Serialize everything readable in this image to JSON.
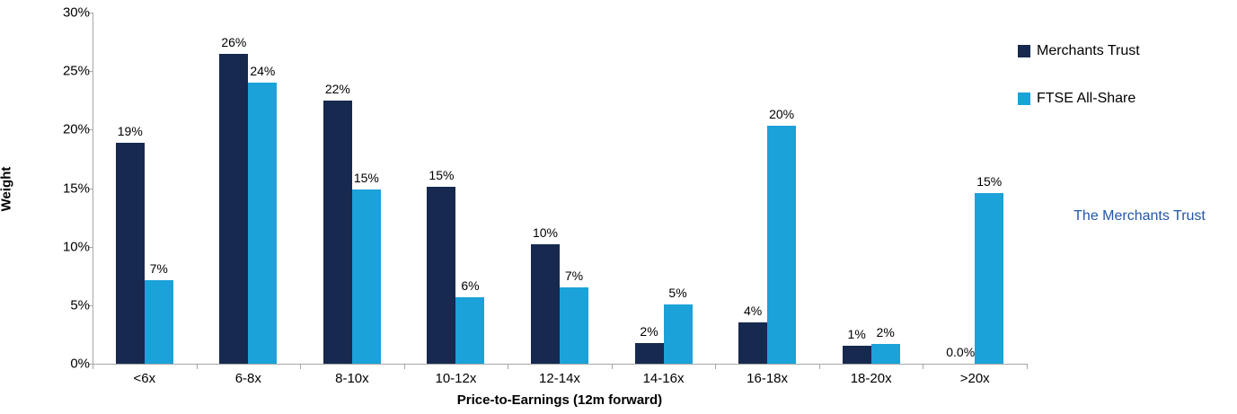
{
  "brand": {
    "text": "The Merchants Trust"
  },
  "colors": {
    "merchants": "#17294F",
    "ftse": "#1BA2D8",
    "axis": "#a6a6a6",
    "brand_blue": "#2457A8"
  },
  "legend": {
    "items": [
      {
        "label": "Merchants Trust",
        "color_key": "merchants"
      },
      {
        "label": "FTSE All-Share",
        "color_key": "ftse"
      }
    ]
  },
  "chart_data": {
    "type": "bar",
    "title": "",
    "xlabel": "Price-to-Earnings (12m forward)",
    "ylabel": "Weight",
    "categories": [
      "<6x",
      "6-8x",
      "8-10x",
      "10-12x",
      "12-14x",
      "14-16x",
      "16-18x",
      "18-20x",
      ">20x"
    ],
    "series": [
      {
        "name": "Merchants Trust",
        "color_key": "merchants",
        "values": [
          18.9,
          26.5,
          22.5,
          15.1,
          10.2,
          1.8,
          3.5,
          1.5,
          0.0
        ],
        "labels": [
          "19%",
          "26%",
          "22%",
          "15%",
          "10%",
          "2%",
          "4%",
          "1%",
          "0.0%"
        ]
      },
      {
        "name": "FTSE All-Share",
        "color_key": "ftse",
        "values": [
          7.1,
          24.0,
          14.9,
          5.7,
          6.5,
          5.1,
          20.3,
          1.7,
          14.6
        ],
        "labels": [
          "7%",
          "24%",
          "15%",
          "6%",
          "7%",
          "5%",
          "20%",
          "2%",
          "15%"
        ]
      }
    ],
    "ylim": [
      0,
      30
    ],
    "ytick_step": 5,
    "ytick_labels": [
      "0%",
      "5%",
      "10%",
      "15%",
      "20%",
      "25%",
      "30%"
    ],
    "grid": false,
    "legend_position": "right"
  }
}
